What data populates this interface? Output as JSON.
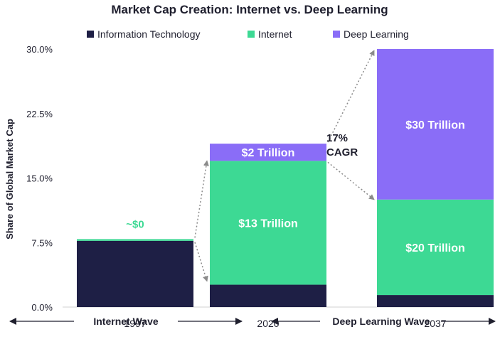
{
  "chart_data": {
    "type": "bar",
    "stacked": true,
    "title": "Market Cap Creation: Internet vs. Deep Learning",
    "ylabel": "Share of Global Market Cap",
    "xlabel": "",
    "ylim": [
      0,
      30
    ],
    "yticks": [
      0,
      7.5,
      15,
      22.5,
      30
    ],
    "ytick_labels": [
      "0.0%",
      "7.5%",
      "15.0%",
      "22.5%",
      "30.0%"
    ],
    "categories": [
      "1997",
      "2020",
      "2037"
    ],
    "legend_position": "top",
    "grid": false,
    "series": [
      {
        "name": "Information Technology",
        "color": "#1e1f45",
        "values": [
          7.7,
          2.6,
          1.4
        ]
      },
      {
        "name": "Internet",
        "color": "#3dd994",
        "values": [
          0.2,
          14.4,
          11.1
        ]
      },
      {
        "name": "Deep Learning",
        "color": "#8a6df7",
        "values": [
          0,
          2.0,
          17.5
        ]
      }
    ],
    "data_labels": [
      {
        "category": "1997",
        "series": "Internet",
        "text": "~$0"
      },
      {
        "category": "2020",
        "series": "Internet",
        "text": "$13 Trillion"
      },
      {
        "category": "2020",
        "series": "Deep Learning",
        "text": "$2 Trillion"
      },
      {
        "category": "2037",
        "series": "Internet",
        "text": "$20 Trillion"
      },
      {
        "category": "2037",
        "series": "Deep Learning",
        "text": "$30 Trillion"
      }
    ],
    "annotations": {
      "cagr_line1": "17%",
      "cagr_line2": "CAGR",
      "wave_left": "Internet Wave",
      "wave_right": "Deep Learning Wave"
    }
  }
}
